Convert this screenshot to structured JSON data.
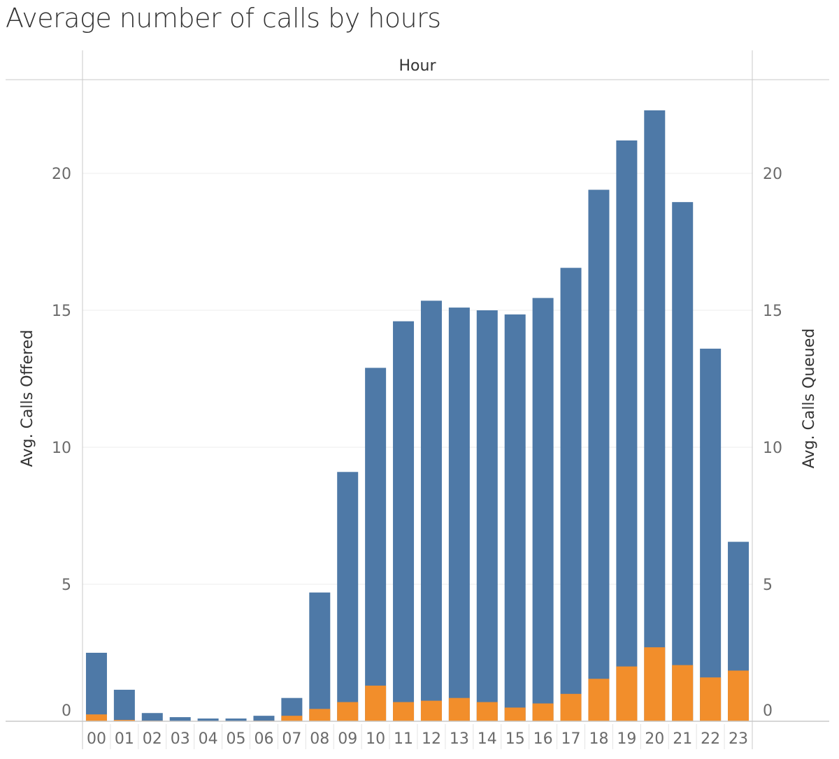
{
  "title": "Average number of calls by hours",
  "colors": {
    "offered": "#4e79a7",
    "queued": "#f28e2b",
    "grid": "#ececec",
    "axis": "#c8c8c8",
    "text": "#6b6b6b",
    "label": "#333333"
  },
  "chart_data": {
    "type": "bar",
    "title": "Average number of calls by hours",
    "header": "Hour",
    "xlabel": "",
    "ylabel_left": "Avg. Calls Offered",
    "ylabel_right": "Avg. Calls Queued",
    "ylim": [
      0,
      22.5
    ],
    "yticks": [
      0,
      5,
      10,
      15,
      20
    ],
    "grid": true,
    "categories": [
      "00",
      "01",
      "02",
      "03",
      "04",
      "05",
      "06",
      "07",
      "08",
      "09",
      "10",
      "11",
      "12",
      "13",
      "14",
      "15",
      "16",
      "17",
      "18",
      "19",
      "20",
      "21",
      "22",
      "23"
    ],
    "series": [
      {
        "name": "Avg. Calls Offered",
        "axis": "left",
        "values": [
          2.5,
          1.15,
          0.3,
          0.15,
          0.1,
          0.1,
          0.2,
          0.85,
          4.7,
          9.1,
          12.9,
          14.6,
          15.35,
          15.1,
          15.0,
          14.85,
          15.45,
          16.55,
          19.4,
          21.2,
          22.3,
          18.95,
          13.6,
          6.55
        ]
      },
      {
        "name": "Avg. Calls Queued",
        "axis": "right",
        "values": [
          0.25,
          0.05,
          0.02,
          0.0,
          0.0,
          0.0,
          0.02,
          0.2,
          0.45,
          0.7,
          1.3,
          0.7,
          0.75,
          0.85,
          0.7,
          0.5,
          0.65,
          1.0,
          1.55,
          2.0,
          2.7,
          2.05,
          1.6,
          1.85
        ]
      }
    ]
  }
}
